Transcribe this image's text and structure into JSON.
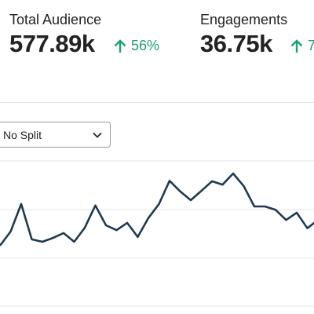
{
  "metrics": [
    {
      "label": "Total Audience",
      "value": "577.89k",
      "change": "56%"
    },
    {
      "label": "Engagements",
      "value": "36.75k",
      "change": "7"
    }
  ],
  "split_selector": "No Split",
  "chart_data": {
    "type": "line",
    "color": "#1f3a52",
    "ylim": [
      0,
      3
    ],
    "values": [
      1.25,
      1.54,
      2.11,
      1.38,
      1.33,
      1.41,
      1.51,
      1.33,
      1.62,
      2.08,
      1.67,
      1.57,
      1.72,
      1.43,
      1.82,
      2.11,
      2.59,
      2.37,
      2.19,
      2.38,
      2.58,
      2.51,
      2.74,
      2.48,
      2.06,
      2.06,
      1.99,
      1.78,
      1.93,
      1.61,
      1.78
    ]
  }
}
